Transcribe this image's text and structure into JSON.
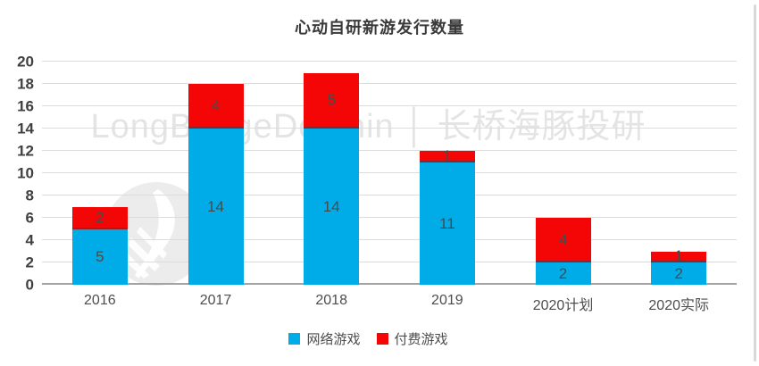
{
  "title": "心动自研新游发行数量",
  "watermark": {
    "text": "LongBridgeDolphin │ 长桥海豚投研",
    "logo_icon": "dolphin-logo"
  },
  "chart_data": {
    "type": "bar",
    "stacked": true,
    "title": "心动自研新游发行数量",
    "categories": [
      "2016",
      "2017",
      "2018",
      "2019",
      "2020计划",
      "2020实际"
    ],
    "series": [
      {
        "name": "网络游戏",
        "color": "#00ACE8",
        "values": [
          5,
          14,
          14,
          11,
          2,
          2
        ]
      },
      {
        "name": "付费游戏",
        "color": "#F40606",
        "values": [
          2,
          4,
          5,
          1,
          4,
          1
        ]
      }
    ],
    "totals": [
      7,
      18,
      19,
      12,
      6,
      3
    ],
    "xlabel": "",
    "ylabel": "",
    "ylim": [
      0,
      20
    ],
    "ytick_step": 2,
    "grid": true,
    "legend_position": "bottom",
    "data_labels": true
  },
  "colors": {
    "background": "#FFFFFF",
    "blue_series": "#00ACE8",
    "red_series": "#F40606",
    "gridline": "#DCDCDC",
    "axis_baseline": "#A3A3A3",
    "title_text": "#3A3A3A",
    "tick_text": "#404040",
    "watermark_text": "#E4E4E4"
  }
}
